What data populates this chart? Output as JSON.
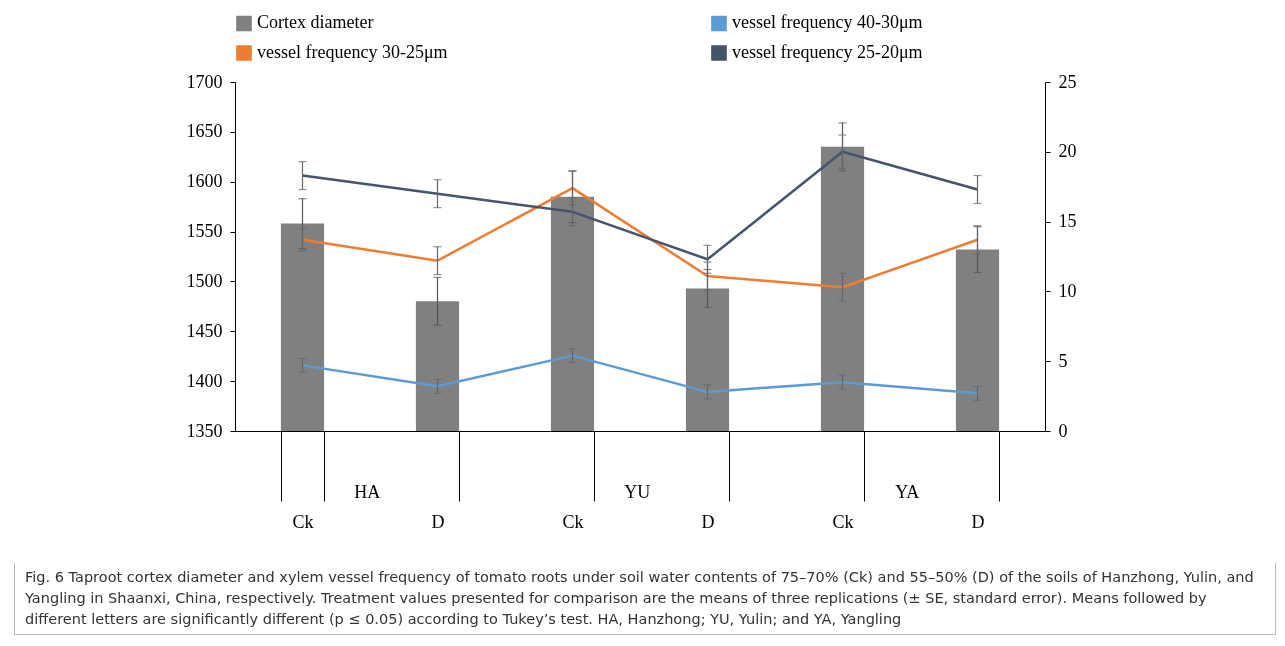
{
  "chart_data": {
    "type": "bar",
    "categories": [
      "Ck",
      "D",
      "Ck",
      "D",
      "Ck",
      "D"
    ],
    "ylim": [
      1350,
      1700
    ],
    "yticks": [
      1350,
      1400,
      1450,
      1500,
      1550,
      1600,
      1650,
      1700
    ],
    "y2lim": [
      0,
      25
    ],
    "y2ticks": [
      0,
      5,
      10,
      15,
      20,
      25
    ],
    "legend": "top",
    "grid": false,
    "series": [
      {
        "name": "Cortex diameter",
        "color": "#808080",
        "values": [
          1558,
          1480,
          1585,
          1493,
          1635,
          1532
        ],
        "errors": [
          25,
          24,
          26,
          19,
          24,
          23
        ]
      },
      {
        "name": "vessel frequency 40-30μm",
        "type": "line",
        "axis": "y2",
        "color": "#5b9bd5",
        "values": [
          4.7,
          3.2,
          5.4,
          2.8,
          3.5,
          2.7
        ],
        "errors": [
          0.5,
          0.5,
          0.5,
          0.5,
          0.5,
          0.5
        ]
      },
      {
        "name": "vessel frequency 30-25μm",
        "type": "line",
        "axis": "y2",
        "color": "#ed7d31",
        "values": [
          13.7,
          12.2,
          17.4,
          11.1,
          10.3,
          13.7
        ],
        "errors": [
          0.8,
          1,
          1.2,
          1,
          1,
          1
        ]
      },
      {
        "name": "vessel frequency 25-20μm",
        "type": "line",
        "axis": "y2",
        "color": "#44546a",
        "values": [
          18.3,
          17.0,
          15.7,
          12.3,
          20.0,
          17.3
        ],
        "errors": [
          1,
          1,
          1,
          1,
          1.2,
          1
        ]
      }
    ],
    "annotations": [
      "HA",
      "YU",
      "YA",
      "Fig. 6 Taproot cortex diameter and xylem vessel frequency of tomato roots under soil water contents of 75–70% (Ck) and 55–50% (D) of the soils of Hanzhong, Yulin, and Yangling in Shaanxi, China, respectively. Treatment values presented for comparison are the means of three replications (± SE, standard error). Means followed by different letters are significantly different (p ≤ 0.05) according to Tukey’s test. HA, Hanzhong; YU, Yulin; and YA, Yangling"
    ]
  }
}
